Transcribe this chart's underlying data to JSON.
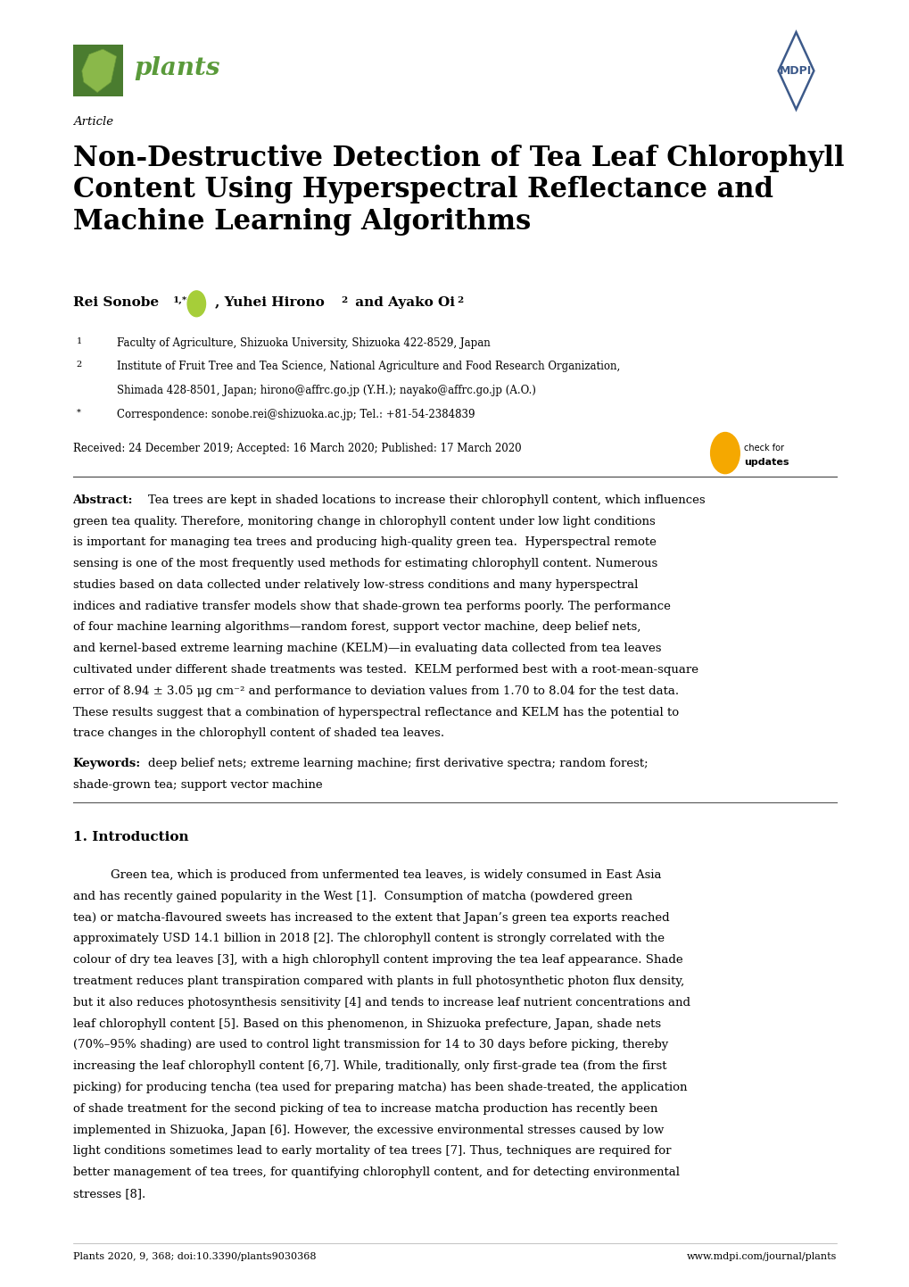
{
  "background_color": "#ffffff",
  "page_width": 10.2,
  "page_height": 14.42,
  "dpi": 100,
  "article_label": "Article",
  "title": "Non-Destructive Detection of Tea Leaf Chlorophyll\nContent Using Hyperspectral Reflectance and\nMachine Learning Algorithms",
  "received": "Received: 24 December 2019; Accepted: 16 March 2020; Published: 17 March 2020",
  "abstract_label": "Abstract:",
  "abstract_lines": [
    "Tea trees are kept in shaded locations to increase their chlorophyll content, which influences",
    "green tea quality. Therefore, monitoring change in chlorophyll content under low light conditions",
    "is important for managing tea trees and producing high-quality green tea.  Hyperspectral remote",
    "sensing is one of the most frequently used methods for estimating chlorophyll content. Numerous",
    "studies based on data collected under relatively low-stress conditions and many hyperspectral",
    "indices and radiative transfer models show that shade-grown tea performs poorly. The performance",
    "of four machine learning algorithms—random forest, support vector machine, deep belief nets,",
    "and kernel-based extreme learning machine (KELM)—in evaluating data collected from tea leaves",
    "cultivated under different shade treatments was tested.  KELM performed best with a root-mean-square",
    "error of 8.94 ± 3.05 μg cm⁻² and performance to deviation values from 1.70 to 8.04 for the test data.",
    "These results suggest that a combination of hyperspectral reflectance and KELM has the potential to",
    "trace changes in the chlorophyll content of shaded tea leaves."
  ],
  "keywords_label": "Keywords:",
  "keywords_lines": [
    "deep belief nets; extreme learning machine; first derivative spectra; random forest;",
    "shade-grown tea; support vector machine"
  ],
  "intro_heading": "1. Introduction",
  "intro_lines": [
    "Green tea, which is produced from unfermented tea leaves, is widely consumed in East Asia",
    "and has recently gained popularity in the West [1].  Consumption of matcha (powdered green",
    "tea) or matcha-flavoured sweets has increased to the extent that Japan’s green tea exports reached",
    "approximately USD 14.1 billion in 2018 [2]. The chlorophyll content is strongly correlated with the",
    "colour of dry tea leaves [3], with a high chlorophyll content improving the tea leaf appearance. Shade",
    "treatment reduces plant transpiration compared with plants in full photosynthetic photon flux density,",
    "but it also reduces photosynthesis sensitivity [4] and tends to increase leaf nutrient concentrations and",
    "leaf chlorophyll content [5]. Based on this phenomenon, in Shizuoka prefecture, Japan, shade nets",
    "(70%–95% shading) are used to control light transmission for 14 to 30 days before picking, thereby",
    "increasing the leaf chlorophyll content [6,7]. While, traditionally, only first-grade tea (from the first",
    "picking) for producing tencha (tea used for preparing matcha) has been shade-treated, the application",
    "of shade treatment for the second picking of tea to increase matcha production has recently been",
    "implemented in Shizuoka, Japan [6]. However, the excessive environmental stresses caused by low",
    "light conditions sometimes lead to early mortality of tea trees [7]. Thus, techniques are required for",
    "better management of tea trees, for quantifying chlorophyll content, and for detecting environmental",
    "stresses [8]."
  ],
  "footer_left": "Plants 2020, 9, 368; doi:10.3390/plants9030368",
  "footer_right": "www.mdpi.com/journal/plants",
  "plants_text_color": "#5a9a3a",
  "plants_box_color": "#4a7c2f",
  "mdpi_color": "#3d5a8a",
  "separator_color": "#333333",
  "body_font_size": 9.5,
  "heading_font_size": 11,
  "title_font_size": 22
}
